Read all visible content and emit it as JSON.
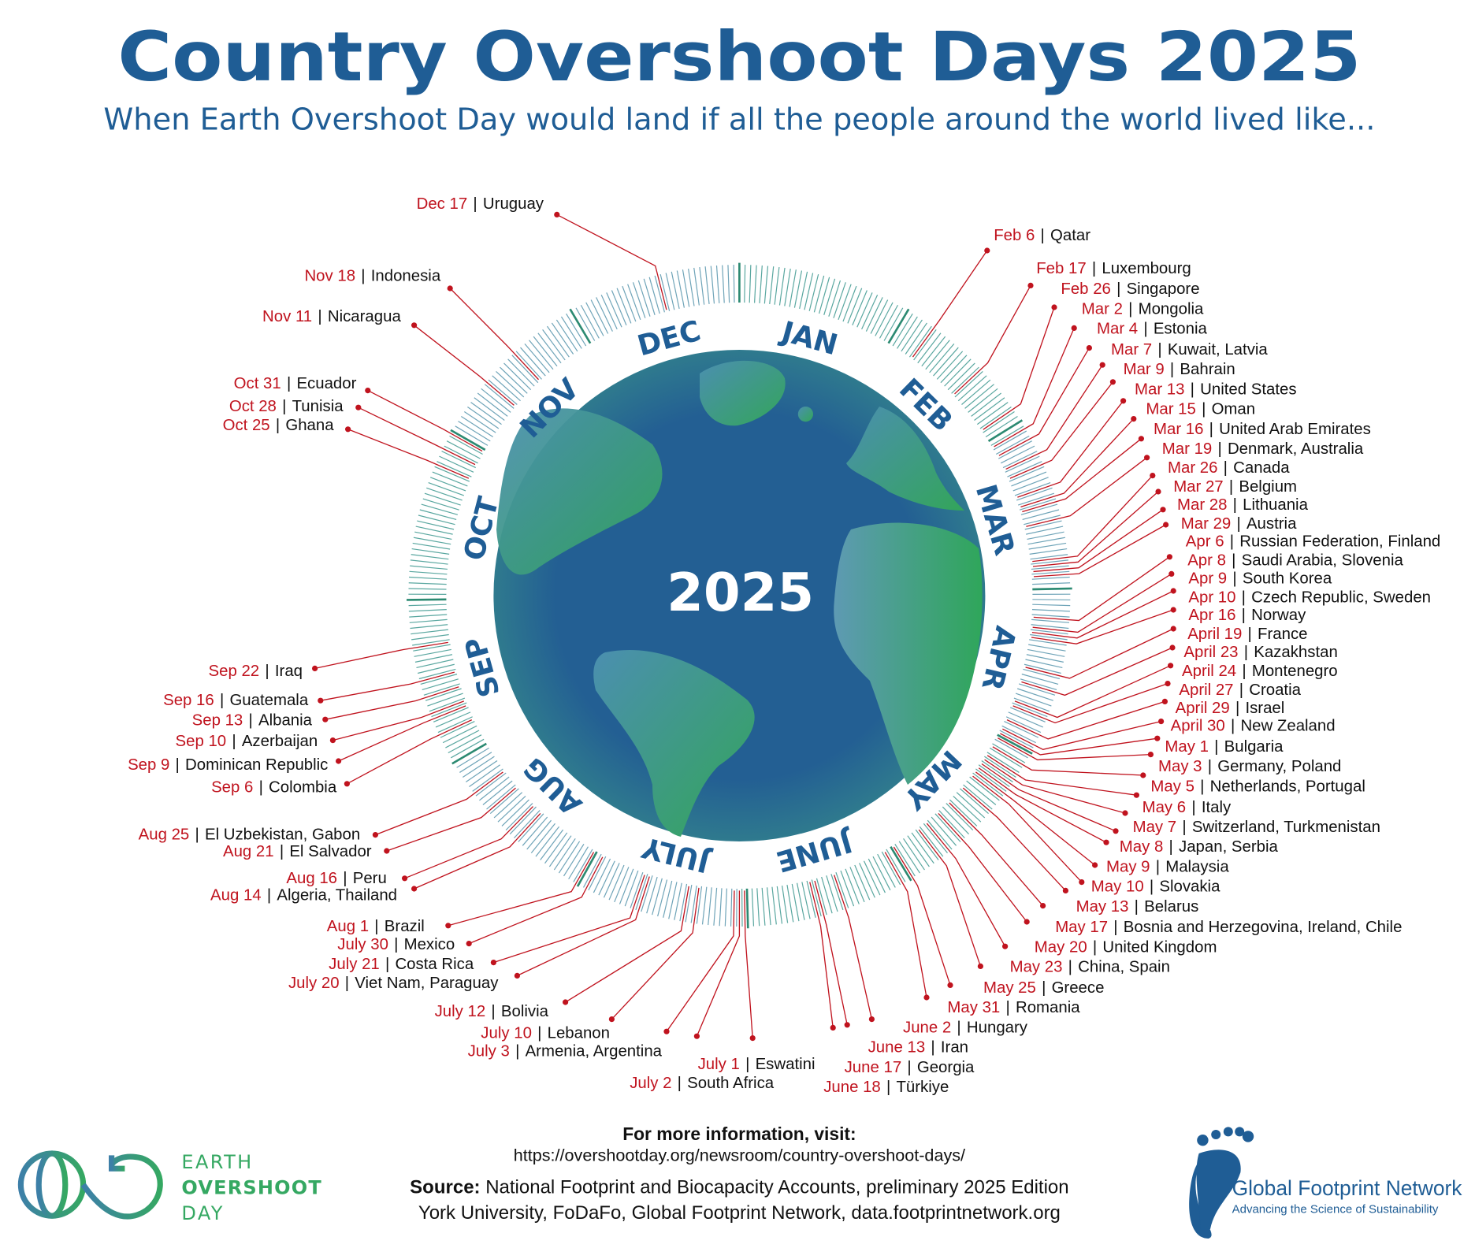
{
  "title": "Country Overshoot Days 2025",
  "subtitle": "When Earth Overshoot Day would land if all the people around the world lived like...",
  "center_year": "2025",
  "separator": "|",
  "months": [
    "JAN",
    "FEB",
    "MAR",
    "APR",
    "MAY",
    "JUNE",
    "JULY",
    "AUG",
    "SEP",
    "OCT",
    "NOV",
    "DEC"
  ],
  "entries": [
    {
      "date": "Feb 6",
      "countries": "Qatar"
    },
    {
      "date": "Feb 17",
      "countries": "Luxembourg"
    },
    {
      "date": "Feb 26",
      "countries": "Singapore"
    },
    {
      "date": "Mar 2",
      "countries": "Mongolia"
    },
    {
      "date": "Mar 4",
      "countries": "Estonia"
    },
    {
      "date": "Mar 7",
      "countries": "Kuwait, Latvia"
    },
    {
      "date": "Mar 9",
      "countries": "Bahrain"
    },
    {
      "date": "Mar 13",
      "countries": "United States"
    },
    {
      "date": "Mar 15",
      "countries": "Oman"
    },
    {
      "date": "Mar 16",
      "countries": "United Arab Emirates"
    },
    {
      "date": "Mar 19",
      "countries": "Denmark, Australia"
    },
    {
      "date": "Mar 26",
      "countries": "Canada"
    },
    {
      "date": "Mar 27",
      "countries": "Belgium"
    },
    {
      "date": "Mar 28",
      "countries": "Lithuania"
    },
    {
      "date": "Mar 29",
      "countries": "Austria"
    },
    {
      "date": "Apr 6",
      "countries": "Russian Federation, Finland"
    },
    {
      "date": "Apr 8",
      "countries": "Saudi Arabia, Slovenia"
    },
    {
      "date": "Apr 9",
      "countries": "South Korea"
    },
    {
      "date": "Apr 10",
      "countries": "Czech Republic, Sweden"
    },
    {
      "date": "Apr 16",
      "countries": "Norway"
    },
    {
      "date": "April 19",
      "countries": "France"
    },
    {
      "date": "April 23",
      "countries": "Kazakhstan"
    },
    {
      "date": "April 24",
      "countries": "Montenegro"
    },
    {
      "date": "April 27",
      "countries": "Croatia"
    },
    {
      "date": "April 29",
      "countries": "Israel"
    },
    {
      "date": "April 30",
      "countries": "New Zealand"
    },
    {
      "date": "May 1",
      "countries": "Bulgaria"
    },
    {
      "date": "May 3",
      "countries": "Germany, Poland"
    },
    {
      "date": "May 5",
      "countries": "Netherlands, Portugal"
    },
    {
      "date": "May 6",
      "countries": "Italy"
    },
    {
      "date": "May 7",
      "countries": "Switzerland, Turkmenistan"
    },
    {
      "date": "May 8",
      "countries": "Japan, Serbia"
    },
    {
      "date": "May 9",
      "countries": "Malaysia"
    },
    {
      "date": "May 10",
      "countries": "Slovakia"
    },
    {
      "date": "May 13",
      "countries": "Belarus"
    },
    {
      "date": "May 17",
      "countries": "Bosnia and Herzegovina, Ireland, Chile"
    },
    {
      "date": "May 20",
      "countries": "United Kingdom"
    },
    {
      "date": "May 23",
      "countries": "China, Spain"
    },
    {
      "date": "May 25",
      "countries": "Greece"
    },
    {
      "date": "May 31",
      "countries": "Romania"
    },
    {
      "date": "June 2",
      "countries": "Hungary"
    },
    {
      "date": "June 13",
      "countries": "Iran"
    },
    {
      "date": "June 17",
      "countries": "Georgia"
    },
    {
      "date": "June 18",
      "countries": "Türkiye"
    },
    {
      "date": "July 1",
      "countries": "Eswatini"
    },
    {
      "date": "July 2",
      "countries": "South Africa"
    },
    {
      "date": "July 3",
      "countries": "Armenia, Argentina"
    },
    {
      "date": "July 10",
      "countries": "Lebanon"
    },
    {
      "date": "July 12",
      "countries": "Bolivia"
    },
    {
      "date": "July 20",
      "countries": "Viet Nam, Paraguay"
    },
    {
      "date": "July 21",
      "countries": "Costa Rica"
    },
    {
      "date": "July 30",
      "countries": "Mexico"
    },
    {
      "date": "Aug 1",
      "countries": "Brazil"
    },
    {
      "date": "Aug 14",
      "countries": "Algeria, Thailand"
    },
    {
      "date": "Aug 16",
      "countries": "Peru"
    },
    {
      "date": "Aug 21",
      "countries": "El Salvador"
    },
    {
      "date": "Aug 25",
      "countries": "El Uzbekistan, Gabon"
    },
    {
      "date": "Sep 6",
      "countries": "Colombia"
    },
    {
      "date": "Sep 9",
      "countries": "Dominican Republic"
    },
    {
      "date": "Sep 10",
      "countries": "Azerbaijan"
    },
    {
      "date": "Sep 13",
      "countries": "Albania"
    },
    {
      "date": "Sep 16",
      "countries": "Guatemala"
    },
    {
      "date": "Sep 22",
      "countries": "Iraq"
    },
    {
      "date": "Oct 25",
      "countries": "Ghana"
    },
    {
      "date": "Oct 28",
      "countries": "Tunisia"
    },
    {
      "date": "Oct 31",
      "countries": "Ecuador"
    },
    {
      "date": "Nov 11",
      "countries": "Nicaragua"
    },
    {
      "date": "Nov 18",
      "countries": "Indonesia"
    },
    {
      "date": "Dec 17",
      "countries": "Uruguay"
    }
  ],
  "footer": {
    "more_info": "For more information, visit:",
    "url": "https://overshootday.org/newsroom/country-overshoot-days/",
    "source_label": "Source:",
    "source_text": "National Footprint and Biocapacity Accounts, preliminary 2025 Edition",
    "source_line2": "York University, FoDaFo, Global Footprint Network, data.footprintnetwork.org"
  },
  "logos": {
    "eod": [
      "EARTH",
      "OVERSHOOT",
      "DAY"
    ],
    "gfn_name": "Global Footprint Network",
    "gfn_tagline": "Advancing the Science of Sustainability"
  },
  "colors": {
    "title_blue": "#1f5d95",
    "date_red": "#c0131e",
    "leader_red": "#c0131e",
    "ocean": "#235f93",
    "land_green": "#3aa35c"
  }
}
